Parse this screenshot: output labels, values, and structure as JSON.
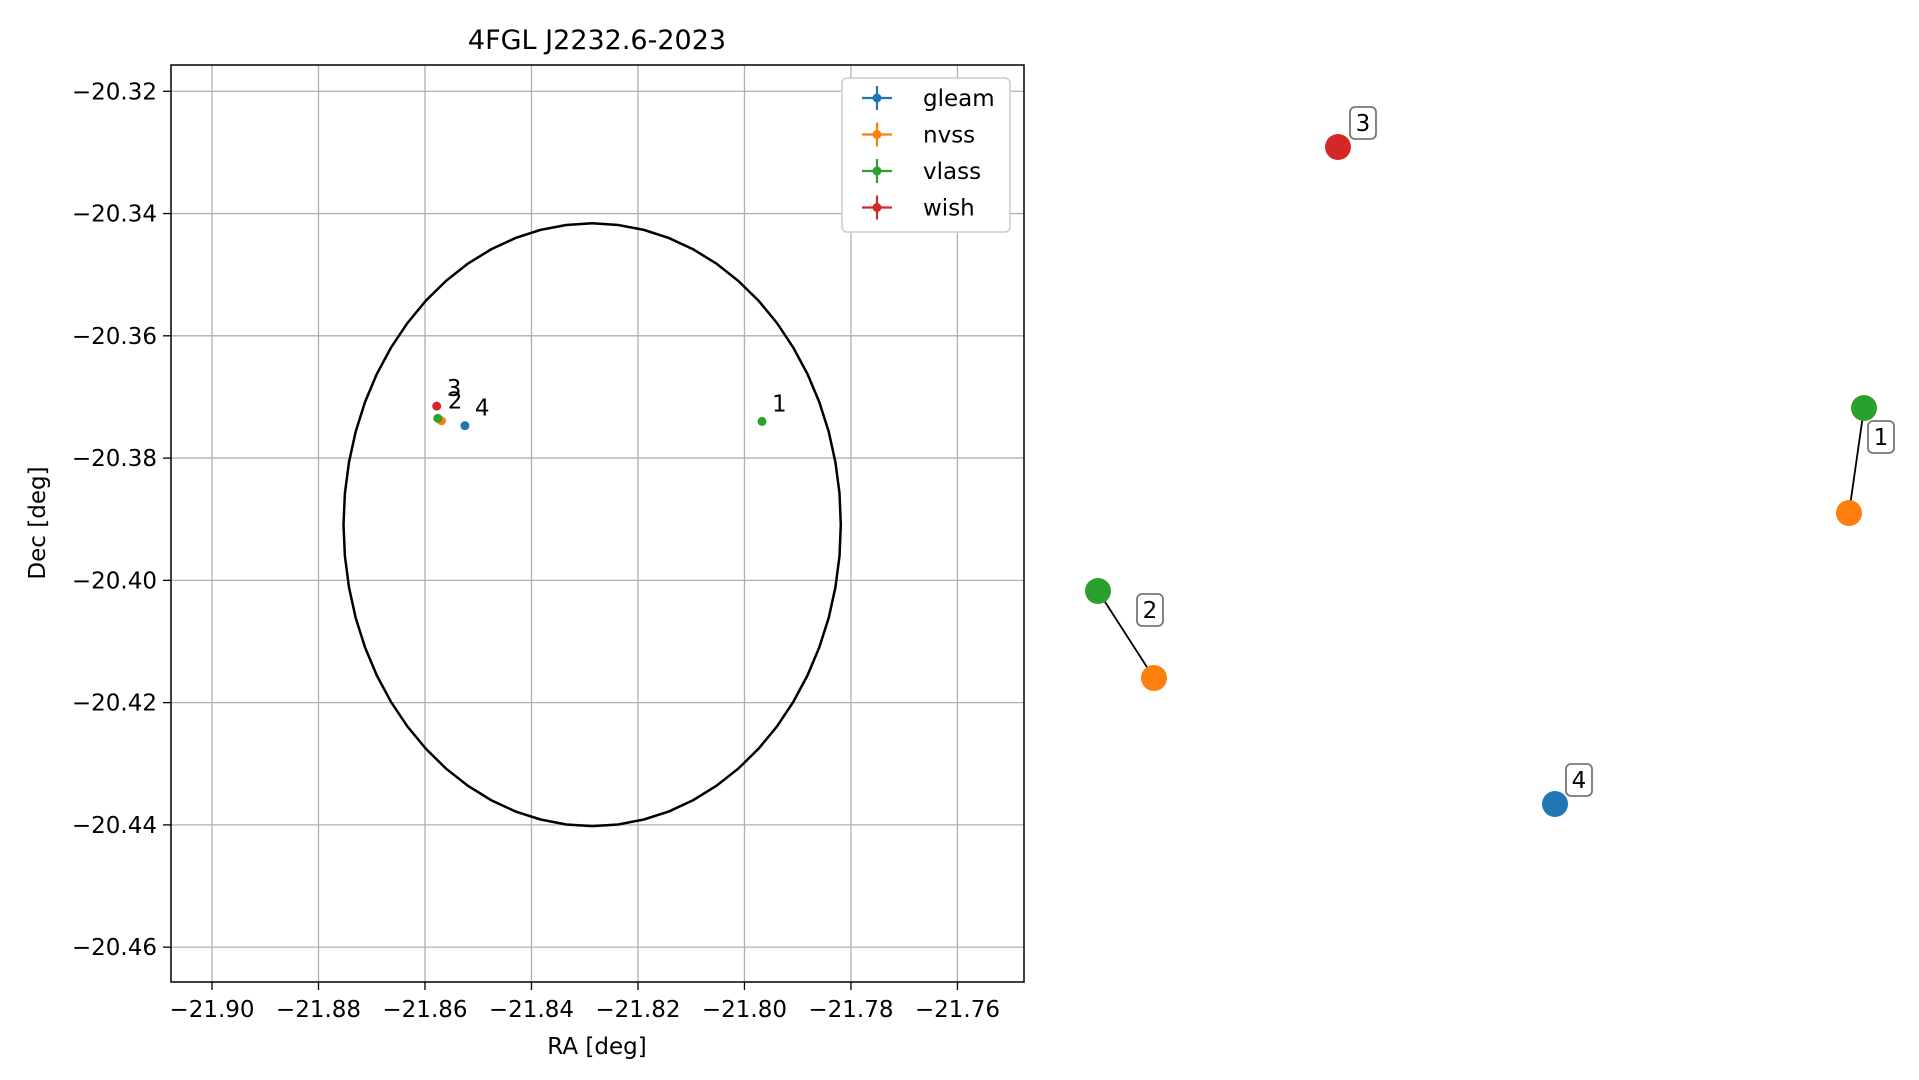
{
  "chart_data": [
    {
      "type": "scatter",
      "title": "4FGL J2232.6-2023",
      "xlabel": "RA [deg]",
      "ylabel": "Dec [deg]",
      "xlim": [
        -21.9077,
        -21.7475
      ],
      "ylim": [
        -20.4657,
        -20.3157
      ],
      "grid": true,
      "legend_position": "top-right",
      "xticks": [
        -21.9,
        -21.88,
        -21.86,
        -21.84,
        -21.82,
        -21.8,
        -21.78,
        -21.76
      ],
      "xtick_labels": [
        "−21.90",
        "−21.88",
        "−21.86",
        "−21.84",
        "−21.82",
        "−21.80",
        "−21.78",
        "−21.76"
      ],
      "yticks": [
        -20.32,
        -20.34,
        -20.36,
        -20.38,
        -20.4,
        -20.42,
        -20.44,
        -20.46
      ],
      "ytick_labels": [
        "−20.32",
        "−20.34",
        "−20.36",
        "−20.38",
        "−20.40",
        "−20.42",
        "−20.44",
        "−20.46"
      ],
      "ellipse": {
        "center_ra": -21.8286,
        "center_dec": -20.3909,
        "semi_axis_ra": 0.0467,
        "semi_axis_dec": 0.0493,
        "color": "#000000"
      },
      "series": [
        {
          "name": "gleam",
          "color": "#1f77b4",
          "points": [
            {
              "ra": -21.8525,
              "dec": -20.3747
            }
          ]
        },
        {
          "name": "nvss",
          "color": "#ff7f0e",
          "points": [
            {
              "ra": -21.8569,
              "dec": -20.3739
            }
          ]
        },
        {
          "name": "vlass",
          "color": "#2ca02c",
          "points": [
            {
              "ra": -21.7967,
              "dec": -20.374
            },
            {
              "ra": -21.8576,
              "dec": -20.3735
            }
          ]
        },
        {
          "name": "wish",
          "color": "#d62728",
          "points": [
            {
              "ra": -21.8578,
              "dec": -20.3715
            }
          ]
        }
      ],
      "annotations": [
        {
          "text": "1",
          "ra": -21.7967,
          "dec": -20.374
        },
        {
          "text": "2",
          "ra": -21.8576,
          "dec": -20.3735
        },
        {
          "text": "3",
          "ra": -21.8578,
          "dec": -20.3715
        },
        {
          "text": "4",
          "ra": -21.8525,
          "dec": -20.3747
        }
      ]
    },
    {
      "type": "scatter",
      "description_free": true,
      "groups": [
        {
          "label": "1",
          "points": [
            {
              "series": "vlass",
              "color": "#2ca02c"
            },
            {
              "series": "nvss",
              "color": "#ff7f0e"
            }
          ]
        },
        {
          "label": "2",
          "points": [
            {
              "series": "vlass",
              "color": "#2ca02c"
            },
            {
              "series": "nvss",
              "color": "#ff7f0e"
            }
          ]
        },
        {
          "label": "3",
          "points": [
            {
              "series": "wish",
              "color": "#d62728"
            }
          ]
        },
        {
          "label": "4",
          "points": [
            {
              "series": "gleam",
              "color": "#1f77b4"
            }
          ]
        }
      ]
    }
  ]
}
